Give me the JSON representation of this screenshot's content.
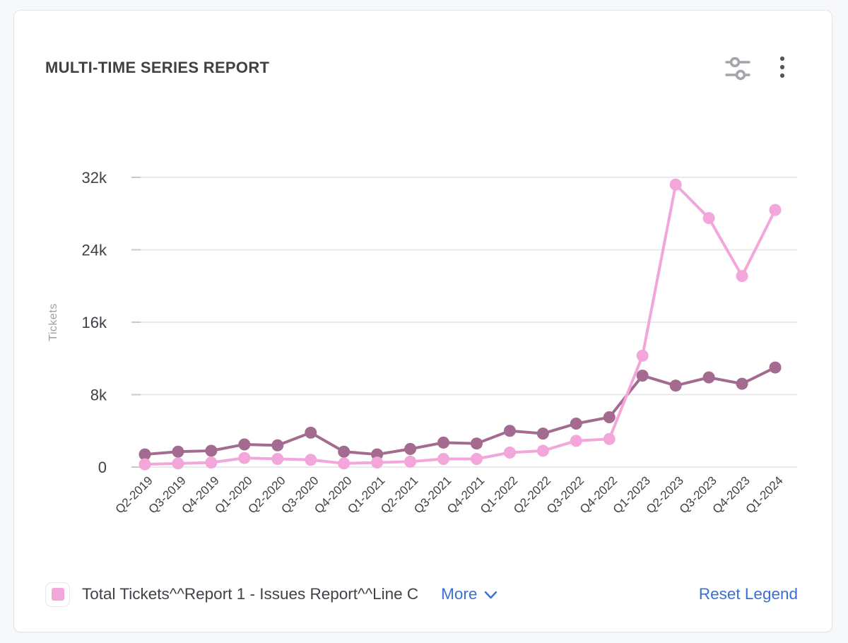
{
  "header": {
    "title": "MULTI-TIME SERIES REPORT",
    "icons": {
      "settings": "sliders-icon",
      "menu": "kebab-menu-icon"
    }
  },
  "chart_data": {
    "type": "line",
    "title": "",
    "xlabel": "",
    "ylabel": "Tickets",
    "grid": true,
    "legend_position": "bottom",
    "ylim": [
      0,
      32000
    ],
    "ytick_values": [
      0,
      8000,
      16000,
      24000,
      32000
    ],
    "ytick_labels": [
      "0",
      "8k",
      "16k",
      "24k",
      "32k"
    ],
    "categories": [
      "Q2-2019",
      "Q3-2019",
      "Q4-2019",
      "Q1-2020",
      "Q2-2020",
      "Q3-2020",
      "Q4-2020",
      "Q1-2021",
      "Q2-2021",
      "Q3-2021",
      "Q4-2021",
      "Q1-2022",
      "Q2-2022",
      "Q3-2022",
      "Q4-2022",
      "Q1-2023",
      "Q2-2023",
      "Q3-2023",
      "Q4-2023",
      "Q1-2024"
    ],
    "series": [
      {
        "name": "Total Tickets^^Report 1 - Issues Report^^Line C",
        "color": "#f3a6da",
        "values": [
          300,
          400,
          500,
          1000,
          900,
          800,
          400,
          500,
          600,
          900,
          900,
          1600,
          1800,
          2900,
          3100,
          12300,
          31200,
          27500,
          21100,
          28400
        ]
      },
      {
        "name": "",
        "color": "#a26b8f",
        "values": [
          1400,
          1700,
          1800,
          2500,
          2400,
          3800,
          1700,
          1400,
          2000,
          2700,
          2600,
          4000,
          3700,
          4800,
          5500,
          10100,
          9000,
          9900,
          9200,
          11000
        ]
      }
    ]
  },
  "legend": {
    "items": [
      {
        "label": "Total Tickets^^Report 1 - Issues Report^^Line C",
        "swatch_color": "#f3a6da"
      }
    ],
    "more_label": "More",
    "more_icon": "chevron-down-icon",
    "reset_label": "Reset Legend",
    "link_color": "#3c6fd3"
  },
  "colors": {
    "page_bg": "#f7f8fa",
    "card_bg": "#ffffff",
    "card_border": "#e4e5e9",
    "grid": "#e4e4e6",
    "title_text": "#3e4145",
    "axis_text": "#3e4146",
    "muted_text": "#9ca0a5",
    "link_blue": "#3c6fd3",
    "series_pink": "#f3a6da",
    "series_mauve": "#a26b8f"
  }
}
